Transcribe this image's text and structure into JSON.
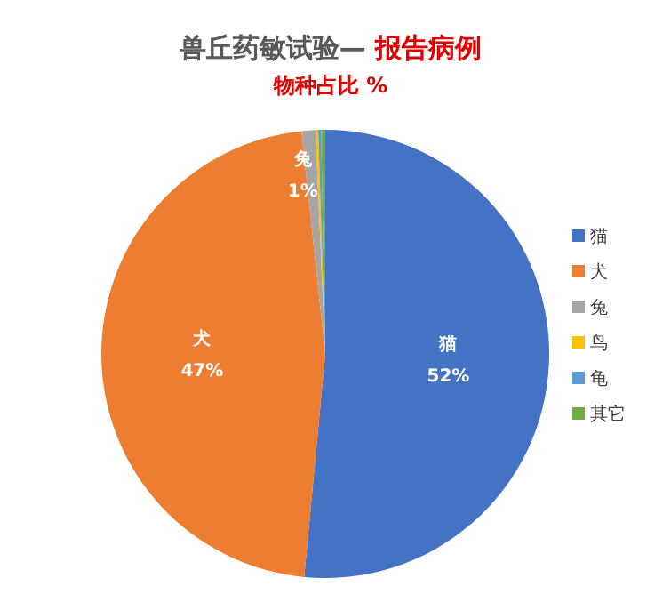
{
  "chart_data": {
    "type": "pie",
    "title": "兽丘药敏试验— **报告病例**",
    "subtitle": "物种占比 %",
    "categories": [
      "猫",
      "犬",
      "兔",
      "鸟",
      "龟",
      "其它"
    ],
    "values": [
      51.5,
      46.8,
      1.0,
      0.2,
      0.2,
      0.3
    ],
    "colors": [
      "#4472c4",
      "#ed7d31",
      "#a5a5a5",
      "#ffc000",
      "#5b9bd5",
      "#70ad47"
    ],
    "value_labels": [
      "52%",
      "47%",
      "1%",
      null,
      null,
      null
    ],
    "legend": "right"
  }
}
